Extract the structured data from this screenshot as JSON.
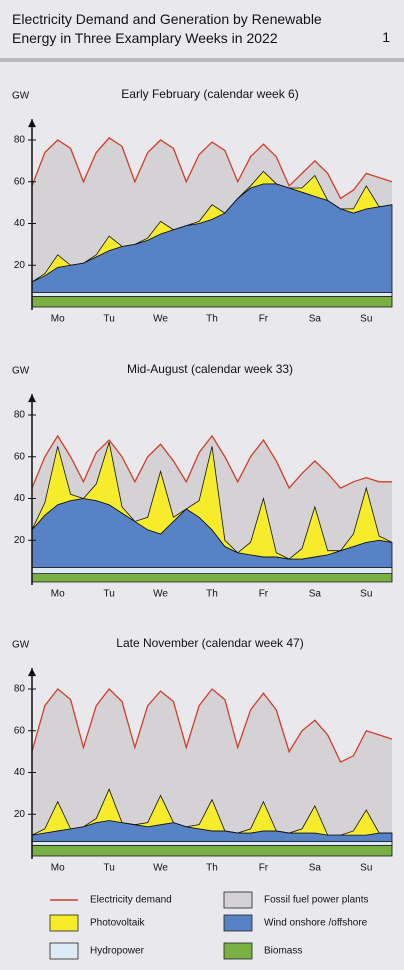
{
  "header": {
    "title": "Electricity Demand and Generation by Renewable Energy in Three Examplary Weeks in 2022",
    "page": "1"
  },
  "fossil": {
    "name": "Fossil fuel power plants",
    "color": "#d4d2d5"
  },
  "chart_data": [
    {
      "type": "area",
      "title": "Early February (calendar week 6)",
      "ylabel": "GW",
      "x": [
        0,
        6,
        12,
        18,
        24,
        30,
        36,
        42,
        48,
        54,
        60,
        66,
        72,
        78,
        84,
        90,
        96,
        102,
        108,
        114,
        120,
        126,
        132,
        138,
        144,
        150,
        156,
        162,
        168
      ],
      "xlim": [
        0,
        168
      ],
      "xticks": [
        {
          "value": 12,
          "label": "Mo"
        },
        {
          "value": 36,
          "label": "Tu"
        },
        {
          "value": 60,
          "label": "We"
        },
        {
          "value": 84,
          "label": "Th"
        },
        {
          "value": 108,
          "label": "Fr"
        },
        {
          "value": 132,
          "label": "Sa"
        },
        {
          "value": 156,
          "label": "Su"
        }
      ],
      "ylim": [
        0,
        90
      ],
      "yticks": [
        20,
        40,
        60,
        80
      ],
      "series": [
        {
          "name": "Biomass",
          "color": "#78b043",
          "values": [
            5,
            5,
            5,
            5,
            5,
            5,
            5,
            5,
            5,
            5,
            5,
            5,
            5,
            5,
            5,
            5,
            5,
            5,
            5,
            5,
            5,
            5,
            5,
            5,
            5,
            5,
            5,
            5,
            5
          ]
        },
        {
          "name": "Hydropower",
          "color": "#dde9f3",
          "values": [
            2,
            2,
            2,
            2,
            2,
            2,
            2,
            2,
            2,
            2,
            2,
            2,
            2,
            2,
            2,
            2,
            2,
            2,
            2,
            2,
            2,
            2,
            2,
            2,
            2,
            2,
            2,
            2,
            2
          ]
        },
        {
          "name": "Wind onshore /offshore",
          "color": "#5782c6",
          "values": [
            5,
            8,
            12,
            13,
            14,
            17,
            20,
            22,
            23,
            25,
            28,
            30,
            32,
            33,
            35,
            38,
            45,
            50,
            52,
            52,
            50,
            48,
            46,
            44,
            40,
            38,
            40,
            41,
            42
          ]
        },
        {
          "name": "Photovoltaik",
          "color": "#f6ec2c",
          "values": [
            0,
            1,
            6,
            0,
            0,
            1,
            7,
            0,
            0,
            1,
            6,
            0,
            0,
            1,
            7,
            0,
            0,
            1,
            6,
            0,
            0,
            2,
            10,
            0,
            0,
            2,
            11,
            0,
            0
          ]
        },
        {
          "name": "Electricity demand",
          "color": "#d43c2b",
          "style": "line",
          "values": [
            58,
            74,
            80,
            76,
            60,
            74,
            81,
            77,
            60,
            74,
            80,
            76,
            60,
            73,
            79,
            75,
            60,
            72,
            78,
            72,
            58,
            64,
            70,
            64,
            52,
            56,
            64,
            62,
            60
          ]
        }
      ]
    },
    {
      "type": "area",
      "title": "Mid-August (calendar week 33)",
      "ylabel": "GW",
      "x": [
        0,
        6,
        12,
        18,
        24,
        30,
        36,
        42,
        48,
        54,
        60,
        66,
        72,
        78,
        84,
        90,
        96,
        102,
        108,
        114,
        120,
        126,
        132,
        138,
        144,
        150,
        156,
        162,
        168
      ],
      "xlim": [
        0,
        168
      ],
      "xticks": [
        {
          "value": 12,
          "label": "Mo"
        },
        {
          "value": 36,
          "label": "Tu"
        },
        {
          "value": 60,
          "label": "We"
        },
        {
          "value": 84,
          "label": "Th"
        },
        {
          "value": 108,
          "label": "Fr"
        },
        {
          "value": 132,
          "label": "Sa"
        },
        {
          "value": 156,
          "label": "Su"
        }
      ],
      "ylim": [
        0,
        90
      ],
      "yticks": [
        20,
        40,
        60,
        80
      ],
      "series": [
        {
          "name": "Biomass",
          "color": "#78b043",
          "values": [
            4,
            4,
            4,
            4,
            4,
            4,
            4,
            4,
            4,
            4,
            4,
            4,
            4,
            4,
            4,
            4,
            4,
            4,
            4,
            4,
            4,
            4,
            4,
            4,
            4,
            4,
            4,
            4,
            4
          ]
        },
        {
          "name": "Hydropower",
          "color": "#dde9f3",
          "values": [
            3,
            3,
            3,
            3,
            3,
            3,
            3,
            3,
            3,
            3,
            3,
            3,
            3,
            3,
            3,
            3,
            3,
            3,
            3,
            3,
            3,
            3,
            3,
            3,
            3,
            3,
            3,
            3,
            3
          ]
        },
        {
          "name": "Wind onshore /offshore",
          "color": "#5782c6",
          "values": [
            18,
            25,
            30,
            32,
            33,
            32,
            30,
            26,
            22,
            18,
            16,
            22,
            28,
            24,
            18,
            10,
            7,
            6,
            5,
            5,
            4,
            4,
            5,
            6,
            8,
            10,
            12,
            13,
            12
          ]
        },
        {
          "name": "Photovoltaik",
          "color": "#f6ec2c",
          "values": [
            0,
            6,
            28,
            3,
            0,
            8,
            30,
            3,
            0,
            6,
            30,
            2,
            0,
            8,
            40,
            3,
            0,
            6,
            28,
            2,
            0,
            5,
            24,
            2,
            0,
            6,
            26,
            2,
            0
          ]
        },
        {
          "name": "Electricity demand",
          "color": "#d43c2b",
          "style": "line",
          "values": [
            45,
            60,
            70,
            60,
            48,
            62,
            68,
            60,
            48,
            60,
            66,
            58,
            48,
            62,
            70,
            60,
            48,
            60,
            68,
            58,
            45,
            52,
            58,
            52,
            45,
            48,
            50,
            48,
            48
          ]
        }
      ]
    },
    {
      "type": "area",
      "title": "Late November (calendar week 47)",
      "ylabel": "GW",
      "x": [
        0,
        6,
        12,
        18,
        24,
        30,
        36,
        42,
        48,
        54,
        60,
        66,
        72,
        78,
        84,
        90,
        96,
        102,
        108,
        114,
        120,
        126,
        132,
        138,
        144,
        150,
        156,
        162,
        168
      ],
      "xlim": [
        0,
        168
      ],
      "xticks": [
        {
          "value": 12,
          "label": "Mo"
        },
        {
          "value": 36,
          "label": "Tu"
        },
        {
          "value": 60,
          "label": "We"
        },
        {
          "value": 84,
          "label": "Th"
        },
        {
          "value": 108,
          "label": "Fr"
        },
        {
          "value": 132,
          "label": "Sa"
        },
        {
          "value": 156,
          "label": "Su"
        }
      ],
      "ylim": [
        0,
        90
      ],
      "yticks": [
        20,
        40,
        60,
        80
      ],
      "series": [
        {
          "name": "Biomass",
          "color": "#78b043",
          "values": [
            5,
            5,
            5,
            5,
            5,
            5,
            5,
            5,
            5,
            5,
            5,
            5,
            5,
            5,
            5,
            5,
            5,
            5,
            5,
            5,
            5,
            5,
            5,
            5,
            5,
            5,
            5,
            5,
            5
          ]
        },
        {
          "name": "Hydropower",
          "color": "#dde9f3",
          "values": [
            2,
            2,
            2,
            2,
            2,
            2,
            2,
            2,
            2,
            2,
            2,
            2,
            2,
            2,
            2,
            2,
            2,
            2,
            2,
            2,
            2,
            2,
            2,
            2,
            2,
            2,
            2,
            2,
            2
          ]
        },
        {
          "name": "Wind onshore /offshore",
          "color": "#5782c6",
          "values": [
            3,
            4,
            5,
            6,
            7,
            9,
            10,
            9,
            8,
            7,
            8,
            9,
            7,
            6,
            5,
            5,
            4,
            4,
            5,
            5,
            4,
            4,
            4,
            3,
            3,
            3,
            3,
            4,
            4
          ]
        },
        {
          "name": "Photovoltaik",
          "color": "#f6ec2c",
          "values": [
            0,
            2,
            14,
            0,
            0,
            2,
            15,
            0,
            0,
            2,
            14,
            0,
            0,
            2,
            15,
            0,
            0,
            2,
            14,
            0,
            0,
            2,
            13,
            0,
            0,
            2,
            12,
            0,
            0
          ]
        },
        {
          "name": "Electricity demand",
          "color": "#d43c2b",
          "style": "line",
          "values": [
            50,
            72,
            80,
            75,
            52,
            72,
            80,
            74,
            52,
            72,
            79,
            74,
            52,
            72,
            80,
            75,
            52,
            70,
            78,
            70,
            50,
            60,
            65,
            58,
            45,
            48,
            60,
            58,
            56
          ]
        }
      ]
    }
  ]
}
